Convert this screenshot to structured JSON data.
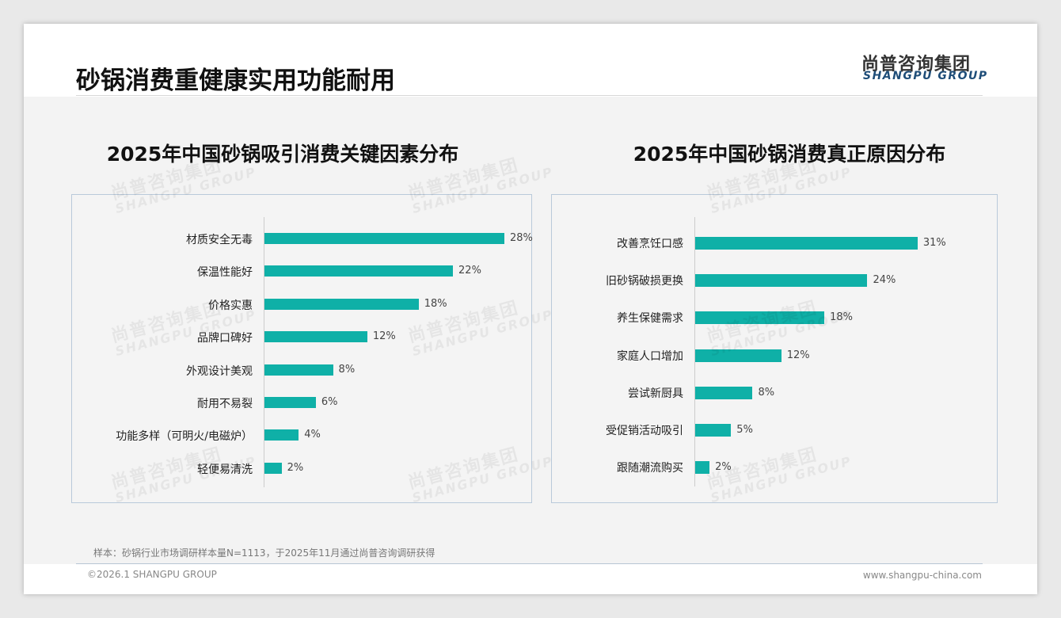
{
  "header": {
    "title": "砂锅消费重健康实用功能耐用",
    "logo_cn": "尚普咨询集团",
    "logo_en": "SHANGPU GROUP"
  },
  "watermark": {
    "cn": "尚普咨询集团",
    "en": "SHANGPU GROUP"
  },
  "chart_data": [
    {
      "type": "bar",
      "orientation": "horizontal",
      "title": "2025年中国砂锅吸引消费关键因素分布",
      "categories": [
        "材质安全无毒",
        "保温性能好",
        "价格实惠",
        "品牌口碑好",
        "外观设计美观",
        "耐用不易裂",
        "功能多样（可明火/电磁炉）",
        "轻便易清洗"
      ],
      "values": [
        28,
        22,
        18,
        12,
        8,
        6,
        4,
        2
      ],
      "labels": [
        "28%",
        "22%",
        "18%",
        "12%",
        "8%",
        "6%",
        "4%",
        "2%"
      ],
      "unit": "%",
      "color": "#0fb0a7"
    },
    {
      "type": "bar",
      "orientation": "horizontal",
      "title": "2025年中国砂锅消费真正原因分布",
      "categories": [
        "改善烹饪口感",
        "旧砂锅破损更换",
        "养生保健需求",
        "家庭人口增加",
        "尝试新厨具",
        "受促销活动吸引",
        "跟随潮流购买"
      ],
      "values": [
        31,
        24,
        18,
        12,
        8,
        5,
        2
      ],
      "labels": [
        "31%",
        "24%",
        "18%",
        "12%",
        "8%",
        "5%",
        "2%"
      ],
      "unit": "%",
      "color": "#0fb0a7"
    }
  ],
  "footer": {
    "note": "样本：砂锅行业市场调研样本量N=1113，于2025年11月通过尚普咨询调研获得",
    "copyright": "©2026.1 SHANGPU GROUP",
    "url": "www.shangpu-china.com"
  }
}
